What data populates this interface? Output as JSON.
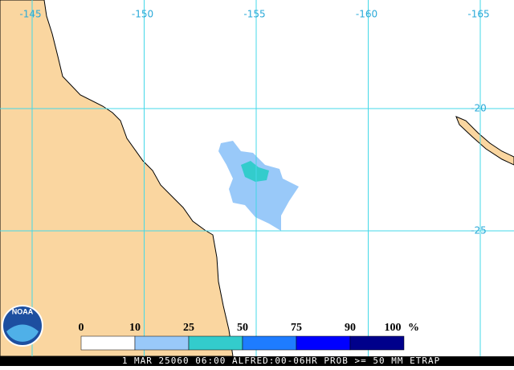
{
  "map": {
    "lon_labels": [
      "-145",
      "-150",
      "-155",
      "-160",
      "-165"
    ],
    "lat_labels": [
      "-20",
      "-25"
    ],
    "legend": {
      "labels": [
        "0",
        "10",
        "25",
        "50",
        "75",
        "90",
        "100"
      ],
      "unit": "%",
      "colors": [
        "#ffffff",
        "#99c9f9",
        "#33cccc",
        "#1e7cff",
        "#0000ff",
        "#00008b"
      ]
    },
    "footer": "1 MAR 25060 06:00 ALFRED:00-06HR PROB >= 50 MM ETRAP"
  },
  "logo": "NOAA"
}
